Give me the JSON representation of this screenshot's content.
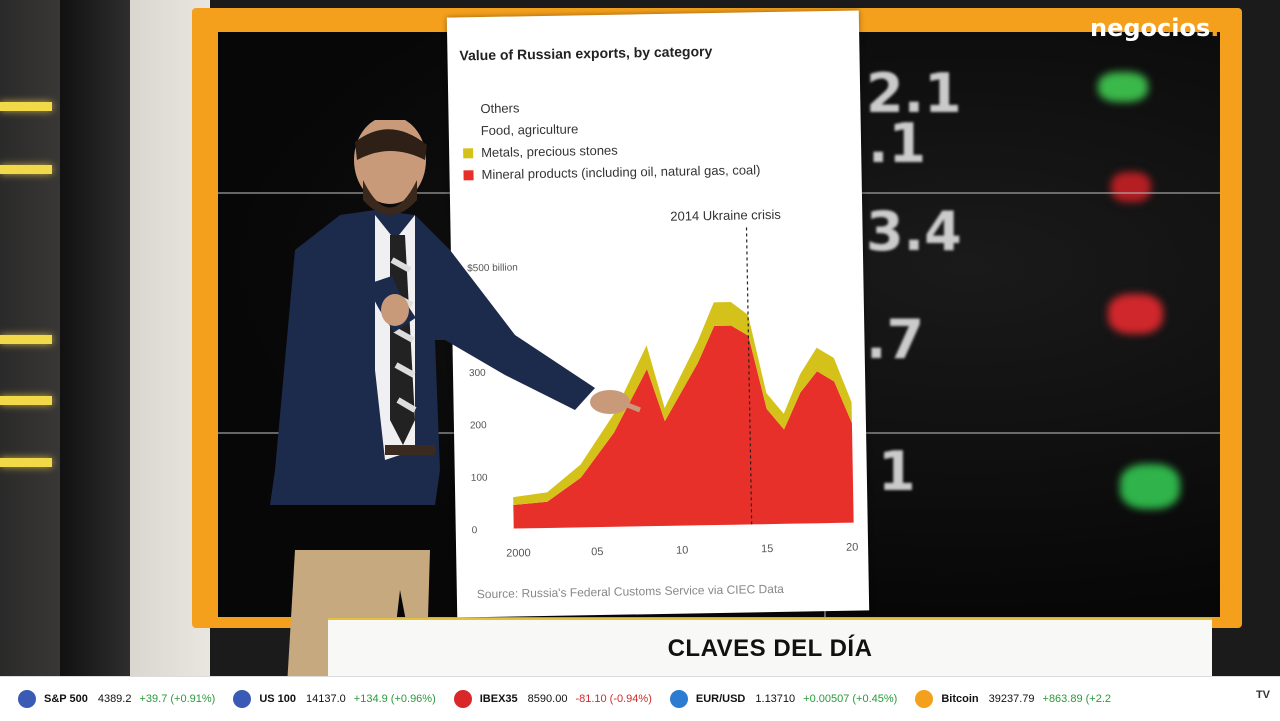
{
  "brand": {
    "logo_text": "negocios",
    "logo_dot": ".",
    "accent": "#f4a01c"
  },
  "background_digits": [
    "2.1",
    ".1",
    "3.4",
    ".7",
    "1"
  ],
  "chart_panel": {
    "title": "Value of Russian exports, by category",
    "legend": [
      {
        "label": "Others",
        "color": "#ffffff"
      },
      {
        "label": "Food, agriculture",
        "color": "#ffffff"
      },
      {
        "label": "Metals, precious stones",
        "color": "#d4c21a"
      },
      {
        "label": "Mineral products (including oil, natural gas, coal)",
        "color": "#e8302a"
      }
    ],
    "annotation": "2014 Ukraine crisis",
    "source": "Source: Russia's Federal Customs Service via CIEC Data"
  },
  "chart_data": {
    "type": "area",
    "title": "Value of Russian exports, by category",
    "ylabel": "$bn",
    "ylim": [
      0,
      500
    ],
    "y_ticks": [
      "0",
      "100",
      "200",
      "300",
      "$500 billion"
    ],
    "x_ticks": [
      "2000",
      "05",
      "10",
      "15",
      "20"
    ],
    "x": [
      2000,
      2002,
      2004,
      2006,
      2008,
      2009,
      2011,
      2012,
      2013,
      2014,
      2015,
      2016,
      2017,
      2018,
      2019,
      2020
    ],
    "series": [
      {
        "name": "Mineral products (including oil, natural gas, coal)",
        "color": "#e8302a",
        "values": [
          45,
          50,
          95,
          180,
          300,
          200,
          310,
          380,
          380,
          360,
          220,
          180,
          250,
          290,
          270,
          190
        ]
      },
      {
        "name": "Metals, precious stones",
        "color": "#d4c21a",
        "values": [
          15,
          18,
          25,
          35,
          45,
          25,
          40,
          45,
          45,
          40,
          30,
          30,
          35,
          45,
          45,
          40
        ]
      }
    ],
    "annotation": {
      "text": "2014 Ukraine crisis",
      "x": 2014
    },
    "grid": false
  },
  "lower_third": {
    "title": "CLAVES DEL DÍA"
  },
  "ticker": [
    {
      "name": "S&P 500",
      "value": "4389.2",
      "change": "+39.7 (+0.91%)",
      "direction": "up",
      "flag_color": "#3a5bb5"
    },
    {
      "name": "US 100",
      "value": "14137.0",
      "change": "+134.9 (+0.96%)",
      "direction": "up",
      "flag_color": "#3a5bb5"
    },
    {
      "name": "IBEX35",
      "value": "8590.00",
      "change": "-81.10 (-0.94%)",
      "direction": "down",
      "flag_color": "#d8282a"
    },
    {
      "name": "EUR/USD",
      "value": "1.13710",
      "change": "+0.00507 (+0.45%)",
      "direction": "up",
      "flag_color": "#2b7bd2"
    },
    {
      "name": "Bitcoin",
      "value": "39237.79",
      "change": "+863.89 (+2.2",
      "direction": "up",
      "flag_color": "#f4a01c"
    }
  ],
  "ticker_end": "TV"
}
